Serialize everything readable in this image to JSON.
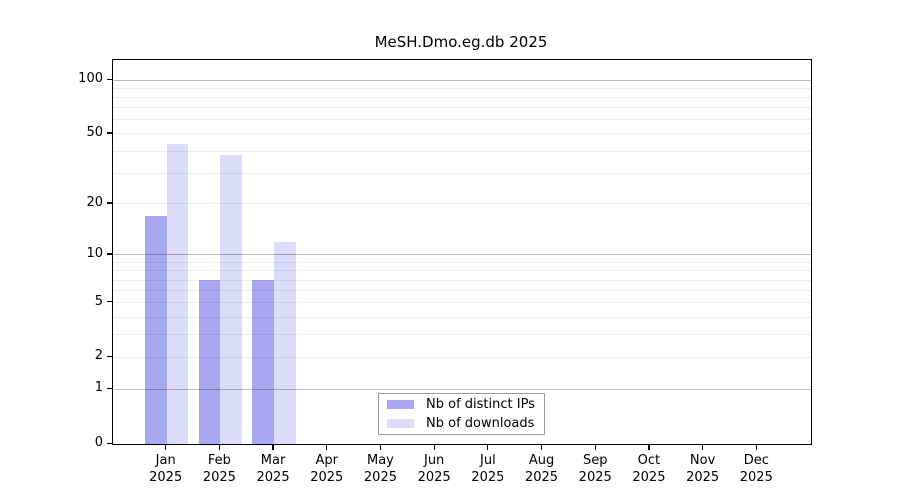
{
  "chart_data": {
    "type": "bar",
    "title": "MeSH.Dmo.eg.db 2025",
    "year_label": "2025",
    "categories": [
      "Jan",
      "Feb",
      "Mar",
      "Apr",
      "May",
      "Jun",
      "Jul",
      "Aug",
      "Sep",
      "Oct",
      "Nov",
      "Dec"
    ],
    "series": [
      {
        "name": "Nb of distinct IPs",
        "color": "#a8a8f0",
        "values": [
          17,
          7,
          7,
          0,
          0,
          0,
          0,
          0,
          0,
          0,
          0,
          0
        ]
      },
      {
        "name": "Nb of downloads",
        "color": "#dcdcf8",
        "values": [
          44,
          38,
          12,
          0,
          0,
          0,
          0,
          0,
          0,
          0,
          0,
          0
        ]
      }
    ],
    "xlabel": "",
    "ylabel": "",
    "y_axis": {
      "scale": "log1p",
      "min": 0,
      "max": 100,
      "tick_labels": [
        0,
        1,
        2,
        5,
        10,
        20,
        50,
        100
      ],
      "major_gridlines": [
        1,
        10,
        100
      ],
      "minor_gridlines": [
        2,
        3,
        4,
        5,
        6,
        7,
        8,
        9,
        20,
        30,
        40,
        50,
        60,
        70,
        80,
        90
      ]
    },
    "grid": "on",
    "legend_position": "bottom-center"
  },
  "colors": {
    "background": "#ffffff",
    "frame": "#000000",
    "bar_distinct_ips": "#a8a8f0",
    "bar_downloads": "#dcdcf8"
  }
}
